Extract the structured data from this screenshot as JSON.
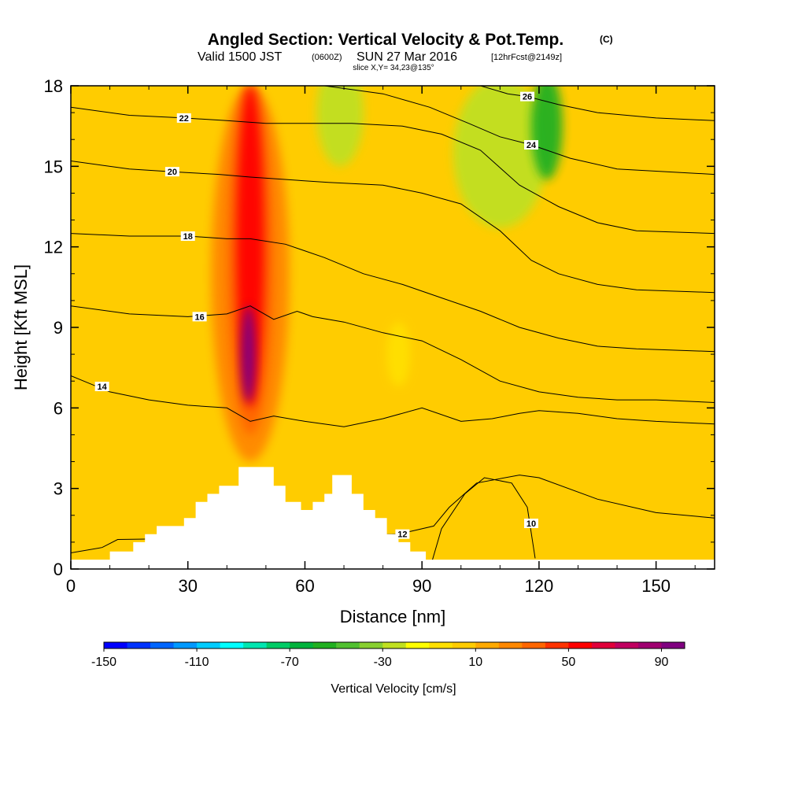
{
  "header": {
    "title": "Angled Section: Vertical Velocity & Pot.Temp.",
    "title_mark": "(C)",
    "valid_prefix": "Valid 1500 JST",
    "valid_utc": "(0600Z)",
    "valid_date": "SUN 27 Mar 2016",
    "forecast": "[12hrFcst@2149z]",
    "slice": "slice X,Y= 34,23@135°"
  },
  "chart_data": {
    "type": "heatmap",
    "title": "Angled Section: Vertical Velocity & Pot.Temp.",
    "xlabel": "Distance [nm]",
    "ylabel": "Height [Kft MSL]",
    "xlim": [
      0,
      165
    ],
    "ylim": [
      0,
      18
    ],
    "x_ticks": [
      0,
      30,
      60,
      90,
      120,
      150
    ],
    "y_ticks": [
      0,
      3,
      6,
      9,
      12,
      15,
      18
    ],
    "colorbar": {
      "label": "Vertical Velocity [cm/s]",
      "min": -150,
      "max": 100,
      "step": 10,
      "tick_values": [
        -150,
        -110,
        -70,
        -30,
        10,
        50,
        90
      ],
      "tick_labels": [
        "-150",
        "-110",
        "-70",
        "-30",
        "10",
        "50",
        "90"
      ],
      "colors": [
        "#0000ff",
        "#0033ff",
        "#0066ff",
        "#0099ff",
        "#00ccff",
        "#00ffff",
        "#00e6b0",
        "#00cc66",
        "#00b33c",
        "#20b020",
        "#50c030",
        "#88d030",
        "#c0e020",
        "#ffff00",
        "#ffe000",
        "#ffcc00",
        "#ffaa00",
        "#ff8800",
        "#ff6600",
        "#ff3300",
        "#ff0000",
        "#e0003a",
        "#c00060",
        "#a00070",
        "#800080"
      ]
    },
    "terrain": [
      [
        0,
        0.35
      ],
      [
        10,
        0.35
      ],
      [
        10,
        0.65
      ],
      [
        16,
        0.65
      ],
      [
        16,
        1.0
      ],
      [
        19,
        1.0
      ],
      [
        19,
        1.3
      ],
      [
        22,
        1.3
      ],
      [
        22,
        1.6
      ],
      [
        29,
        1.6
      ],
      [
        29,
        1.9
      ],
      [
        32,
        1.9
      ],
      [
        32,
        2.5
      ],
      [
        35,
        2.5
      ],
      [
        35,
        2.8
      ],
      [
        38,
        2.8
      ],
      [
        38,
        3.1
      ],
      [
        43,
        3.1
      ],
      [
        43,
        3.8
      ],
      [
        52,
        3.8
      ],
      [
        52,
        3.1
      ],
      [
        55,
        3.1
      ],
      [
        55,
        2.5
      ],
      [
        59,
        2.5
      ],
      [
        59,
        2.2
      ],
      [
        62,
        2.2
      ],
      [
        62,
        2.5
      ],
      [
        65,
        2.5
      ],
      [
        65,
        2.8
      ],
      [
        67,
        2.8
      ],
      [
        67,
        3.5
      ],
      [
        72,
        3.5
      ],
      [
        72,
        2.8
      ],
      [
        75,
        2.8
      ],
      [
        75,
        2.2
      ],
      [
        78,
        2.2
      ],
      [
        78,
        1.9
      ],
      [
        81,
        1.9
      ],
      [
        81,
        1.3
      ],
      [
        84,
        1.3
      ],
      [
        84,
        1.0
      ],
      [
        87,
        1.0
      ],
      [
        87,
        0.65
      ],
      [
        91,
        0.65
      ],
      [
        91,
        0.35
      ],
      [
        165,
        0.35
      ]
    ],
    "isentropes": [
      {
        "theta": 10,
        "label_at": [
          118,
          1.7
        ],
        "points": [
          [
            92,
            0
          ],
          [
            95,
            1.5
          ],
          [
            101,
            2.8
          ],
          [
            106,
            3.4
          ],
          [
            113,
            3.2
          ],
          [
            117,
            2.3
          ],
          [
            119,
            0.4
          ]
        ]
      },
      {
        "theta": 12,
        "label_at": [
          85,
          1.3
        ],
        "points": [
          [
            0,
            0.6
          ],
          [
            8,
            0.8
          ],
          [
            12,
            1.1
          ],
          [
            60,
            1.2
          ],
          [
            84,
            1.3
          ],
          [
            93,
            1.6
          ],
          [
            97,
            2.3
          ],
          [
            104,
            3.2
          ],
          [
            115,
            3.5
          ],
          [
            120,
            3.4
          ],
          [
            135,
            2.6
          ],
          [
            150,
            2.1
          ],
          [
            165,
            1.9
          ]
        ]
      },
      {
        "theta": 14,
        "label_at": [
          8,
          6.8
        ],
        "points": [
          [
            0,
            7.2
          ],
          [
            10,
            6.6
          ],
          [
            20,
            6.3
          ],
          [
            30,
            6.1
          ],
          [
            40,
            6.0
          ],
          [
            46,
            5.5
          ],
          [
            52,
            5.7
          ],
          [
            60,
            5.5
          ],
          [
            70,
            5.3
          ],
          [
            80,
            5.6
          ],
          [
            90,
            6.0
          ],
          [
            100,
            5.5
          ],
          [
            108,
            5.6
          ],
          [
            115,
            5.8
          ],
          [
            120,
            5.9
          ],
          [
            130,
            5.8
          ],
          [
            140,
            5.6
          ],
          [
            150,
            5.5
          ],
          [
            165,
            5.4
          ]
        ]
      },
      {
        "theta": 16,
        "label_at": [
          33,
          9.4
        ],
        "points": [
          [
            0,
            9.8
          ],
          [
            15,
            9.5
          ],
          [
            30,
            9.4
          ],
          [
            40,
            9.5
          ],
          [
            46,
            9.8
          ],
          [
            52,
            9.3
          ],
          [
            58,
            9.6
          ],
          [
            62,
            9.4
          ],
          [
            70,
            9.2
          ],
          [
            80,
            8.8
          ],
          [
            90,
            8.5
          ],
          [
            100,
            7.8
          ],
          [
            110,
            7.0
          ],
          [
            120,
            6.6
          ],
          [
            130,
            6.4
          ],
          [
            140,
            6.3
          ],
          [
            150,
            6.3
          ],
          [
            165,
            6.2
          ]
        ]
      },
      {
        "theta": 18,
        "label_at": [
          30,
          12.4
        ],
        "points": [
          [
            0,
            12.5
          ],
          [
            15,
            12.4
          ],
          [
            30,
            12.4
          ],
          [
            40,
            12.3
          ],
          [
            46,
            12.3
          ],
          [
            55,
            12.1
          ],
          [
            65,
            11.6
          ],
          [
            75,
            11.0
          ],
          [
            85,
            10.6
          ],
          [
            95,
            10.1
          ],
          [
            105,
            9.6
          ],
          [
            115,
            9.0
          ],
          [
            125,
            8.6
          ],
          [
            135,
            8.3
          ],
          [
            145,
            8.2
          ],
          [
            165,
            8.1
          ]
        ]
      },
      {
        "theta": 20,
        "label_at": [
          26,
          14.8
        ],
        "points": [
          [
            0,
            15.2
          ],
          [
            15,
            14.9
          ],
          [
            26,
            14.8
          ],
          [
            38,
            14.7
          ],
          [
            46,
            14.6
          ],
          [
            56,
            14.5
          ],
          [
            66,
            14.4
          ],
          [
            80,
            14.3
          ],
          [
            90,
            14.0
          ],
          [
            100,
            13.6
          ],
          [
            110,
            12.6
          ],
          [
            118,
            11.5
          ],
          [
            125,
            11.0
          ],
          [
            135,
            10.6
          ],
          [
            145,
            10.4
          ],
          [
            165,
            10.3
          ]
        ]
      },
      {
        "theta": 22,
        "label_at": [
          29,
          16.8
        ],
        "points": [
          [
            0,
            17.2
          ],
          [
            15,
            16.9
          ],
          [
            29,
            16.8
          ],
          [
            40,
            16.7
          ],
          [
            50,
            16.6
          ],
          [
            60,
            16.6
          ],
          [
            72,
            16.6
          ],
          [
            85,
            16.5
          ],
          [
            95,
            16.2
          ],
          [
            105,
            15.6
          ],
          [
            115,
            14.3
          ],
          [
            125,
            13.5
          ],
          [
            135,
            12.9
          ],
          [
            145,
            12.6
          ],
          [
            165,
            12.5
          ]
        ]
      },
      {
        "theta": 24,
        "label_at": [
          118,
          15.8
        ],
        "points": [
          [
            65,
            18
          ],
          [
            80,
            17.7
          ],
          [
            92,
            17.2
          ],
          [
            102,
            16.6
          ],
          [
            110,
            16.1
          ],
          [
            118,
            15.8
          ],
          [
            128,
            15.3
          ],
          [
            140,
            14.9
          ],
          [
            165,
            14.7
          ]
        ]
      },
      {
        "theta": 26,
        "label_at": [
          117,
          17.6
        ],
        "points": [
          [
            105,
            18
          ],
          [
            112,
            17.7
          ],
          [
            117,
            17.6
          ],
          [
            125,
            17.3
          ],
          [
            135,
            17.0
          ],
          [
            150,
            16.8
          ],
          [
            165,
            16.7
          ]
        ]
      }
    ],
    "vertical_velocity_features": [
      {
        "shape": "ellipse",
        "cx": 46,
        "cy": 11,
        "rx": 10,
        "ry": 7,
        "value": 20
      },
      {
        "shape": "ellipse",
        "cx": 46,
        "cy": 11.5,
        "rx": 6,
        "ry": 6.5,
        "value": 35
      },
      {
        "shape": "ellipse",
        "cx": 46,
        "cy": 12,
        "rx": 3.5,
        "ry": 6,
        "value": 50
      },
      {
        "shape": "ellipse",
        "cx": 45.5,
        "cy": 8,
        "rx": 1.8,
        "ry": 1.8,
        "value": 90
      },
      {
        "shape": "ellipse",
        "cx": 69,
        "cy": 17,
        "rx": 6,
        "ry": 2,
        "value": -30
      },
      {
        "shape": "ellipse",
        "cx": 84,
        "cy": 8,
        "rx": 3,
        "ry": 1.2,
        "value": -10
      },
      {
        "shape": "ellipse",
        "cx": 110,
        "cy": 15.5,
        "rx": 12,
        "ry": 2.8,
        "value": -25
      },
      {
        "shape": "ellipse",
        "cx": 122,
        "cy": 16.5,
        "rx": 4,
        "ry": 2,
        "value": -60
      }
    ]
  }
}
